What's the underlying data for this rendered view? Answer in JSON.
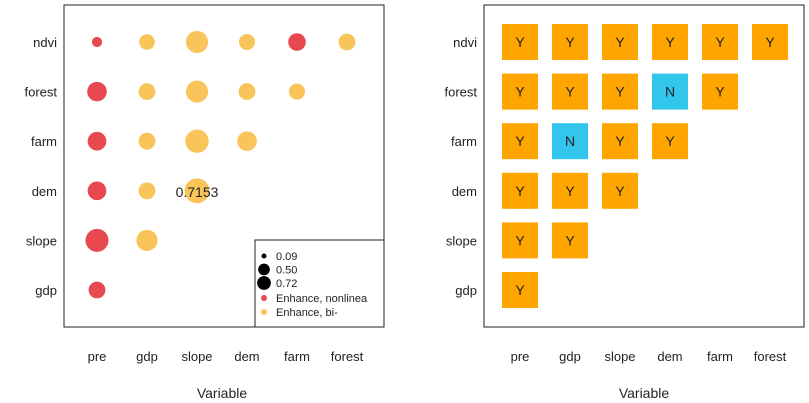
{
  "colors": {
    "enhance_nonlinear": "#e8484f",
    "enhance_bi": "#f9c55a",
    "cell_y": "#ffa500",
    "cell_n": "#33c6ec",
    "frame": "#222222"
  },
  "chart_data": [
    {
      "type": "scatter",
      "xlabel": "Variable",
      "ylabel": "",
      "x_categories": [
        "pre",
        "gdp",
        "slope",
        "dem",
        "farm",
        "forest"
      ],
      "y_categories": [
        "gdp",
        "slope",
        "dem",
        "farm",
        "forest",
        "ndvi"
      ],
      "points": [
        {
          "x": "pre",
          "y": "gdp",
          "size": 0.3,
          "type": "nonlinear"
        },
        {
          "x": "pre",
          "y": "slope",
          "size": 0.6,
          "type": "nonlinear"
        },
        {
          "x": "gdp",
          "y": "slope",
          "size": 0.5,
          "type": "bi"
        },
        {
          "x": "pre",
          "y": "dem",
          "size": 0.38,
          "type": "nonlinear"
        },
        {
          "x": "gdp",
          "y": "dem",
          "size": 0.3,
          "type": "bi"
        },
        {
          "x": "slope",
          "y": "dem",
          "size": 0.7153,
          "type": "bi"
        },
        {
          "x": "pre",
          "y": "farm",
          "size": 0.38,
          "type": "nonlinear"
        },
        {
          "x": "gdp",
          "y": "farm",
          "size": 0.3,
          "type": "bi"
        },
        {
          "x": "slope",
          "y": "farm",
          "size": 0.62,
          "type": "bi"
        },
        {
          "x": "dem",
          "y": "farm",
          "size": 0.42,
          "type": "bi"
        },
        {
          "x": "pre",
          "y": "forest",
          "size": 0.42,
          "type": "nonlinear"
        },
        {
          "x": "gdp",
          "y": "forest",
          "size": 0.3,
          "type": "bi"
        },
        {
          "x": "slope",
          "y": "forest",
          "size": 0.55,
          "type": "bi"
        },
        {
          "x": "dem",
          "y": "forest",
          "size": 0.3,
          "type": "bi"
        },
        {
          "x": "farm",
          "y": "forest",
          "size": 0.27,
          "type": "bi"
        },
        {
          "x": "pre",
          "y": "ndvi",
          "size": 0.09,
          "type": "nonlinear"
        },
        {
          "x": "gdp",
          "y": "ndvi",
          "size": 0.25,
          "type": "bi"
        },
        {
          "x": "slope",
          "y": "ndvi",
          "size": 0.55,
          "type": "bi"
        },
        {
          "x": "dem",
          "y": "ndvi",
          "size": 0.27,
          "type": "bi"
        },
        {
          "x": "farm",
          "y": "ndvi",
          "size": 0.33,
          "type": "nonlinear"
        },
        {
          "x": "forest",
          "y": "ndvi",
          "size": 0.3,
          "type": "bi"
        }
      ],
      "annotation": {
        "x": "slope",
        "y": "dem",
        "text": "0.7153"
      },
      "legend": {
        "placement": "bottom-right",
        "size_items": [
          {
            "value": 0.09,
            "label": "0.09"
          },
          {
            "value": 0.5,
            "label": "0.50"
          },
          {
            "value": 0.72,
            "label": "0.72"
          }
        ],
        "color_items": [
          {
            "type": "nonlinear",
            "label": "Enhance, nonlinea"
          },
          {
            "type": "bi",
            "label": "Enhance, bi-"
          }
        ]
      }
    },
    {
      "type": "table",
      "xlabel": "Variable",
      "ylabel": "",
      "x_categories": [
        "pre",
        "gdp",
        "slope",
        "dem",
        "farm",
        "forest"
      ],
      "y_categories": [
        "gdp",
        "slope",
        "dem",
        "farm",
        "forest",
        "ndvi"
      ],
      "cells": [
        {
          "x": "pre",
          "y": "gdp",
          "value": "Y"
        },
        {
          "x": "pre",
          "y": "slope",
          "value": "Y"
        },
        {
          "x": "gdp",
          "y": "slope",
          "value": "Y"
        },
        {
          "x": "pre",
          "y": "dem",
          "value": "Y"
        },
        {
          "x": "gdp",
          "y": "dem",
          "value": "Y"
        },
        {
          "x": "slope",
          "y": "dem",
          "value": "Y"
        },
        {
          "x": "pre",
          "y": "farm",
          "value": "Y"
        },
        {
          "x": "gdp",
          "y": "farm",
          "value": "N"
        },
        {
          "x": "slope",
          "y": "farm",
          "value": "Y"
        },
        {
          "x": "dem",
          "y": "farm",
          "value": "Y"
        },
        {
          "x": "pre",
          "y": "forest",
          "value": "Y"
        },
        {
          "x": "gdp",
          "y": "forest",
          "value": "Y"
        },
        {
          "x": "slope",
          "y": "forest",
          "value": "Y"
        },
        {
          "x": "dem",
          "y": "forest",
          "value": "N"
        },
        {
          "x": "farm",
          "y": "forest",
          "value": "Y"
        },
        {
          "x": "pre",
          "y": "ndvi",
          "value": "Y"
        },
        {
          "x": "gdp",
          "y": "ndvi",
          "value": "Y"
        },
        {
          "x": "slope",
          "y": "ndvi",
          "value": "Y"
        },
        {
          "x": "dem",
          "y": "ndvi",
          "value": "Y"
        },
        {
          "x": "farm",
          "y": "ndvi",
          "value": "Y"
        },
        {
          "x": "forest",
          "y": "ndvi",
          "value": "Y"
        }
      ]
    }
  ]
}
